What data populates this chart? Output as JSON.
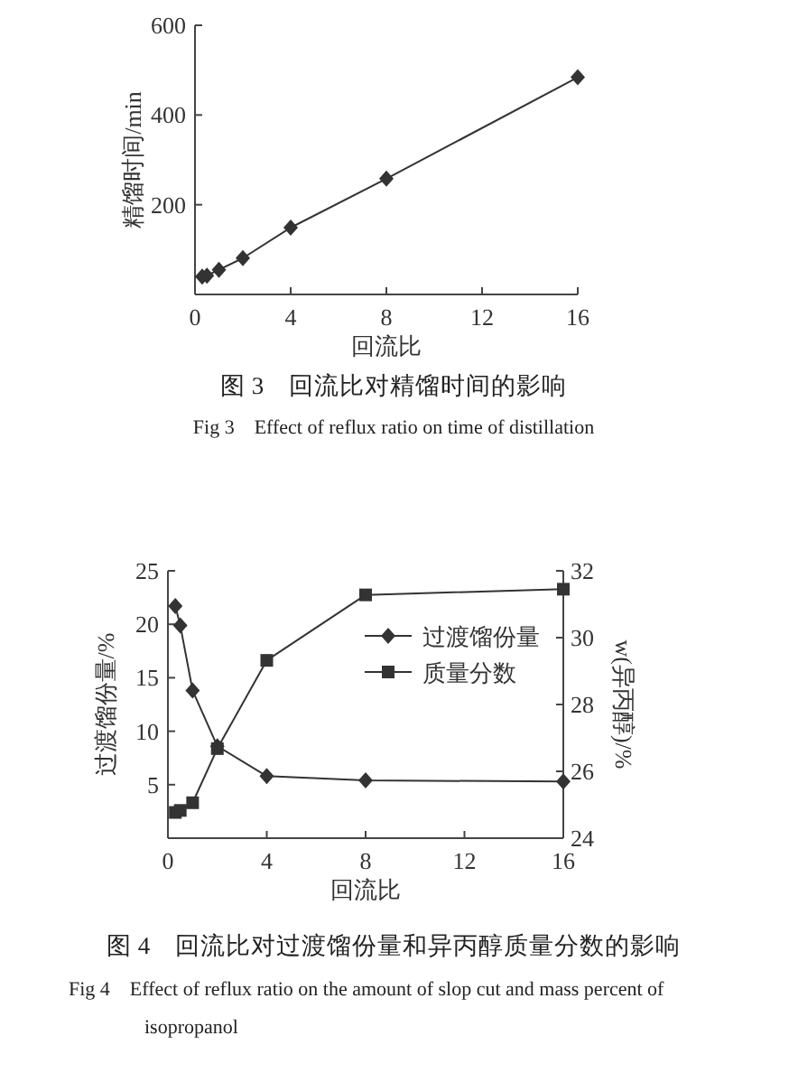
{
  "chart_data": [
    {
      "type": "line",
      "title": "图 3　回流比对精馏时间的影响",
      "subtitle": "Fig 3　Effect of reflux ratio on time of distillation",
      "xlabel": "回流比",
      "ylabel": "精馏时间/min",
      "x": [
        0.3,
        0.5,
        1,
        2,
        4,
        8,
        16
      ],
      "xlim": [
        0,
        16
      ],
      "xticks": [
        0,
        4,
        8,
        12,
        16
      ],
      "ylim": [
        0,
        600
      ],
      "yticks": [
        200,
        400,
        600
      ],
      "grid": false,
      "legend": false,
      "series": [
        {
          "color": "#333333",
          "marker": "diamond",
          "values": [
            40,
            42,
            55,
            81,
            149,
            258,
            484
          ]
        }
      ]
    },
    {
      "type": "line",
      "title": "图 4　回流比对过渡馏份量和异丙醇质量分数的影响",
      "subtitle": "Fig 4　Effect of reflux ratio on the amount of slop cut and mass percent of isopropanol",
      "xlabel": "回流比",
      "ylabel": "过渡馏份量/%",
      "y2label": "w(异丙醇)/%",
      "x": [
        0.3,
        0.5,
        1,
        2,
        4,
        8,
        16
      ],
      "xlim": [
        0,
        16
      ],
      "xticks": [
        0,
        4,
        8,
        12,
        16
      ],
      "ylim": [
        0,
        25
      ],
      "yticks": [
        5,
        10,
        15,
        20,
        25
      ],
      "y2lim": [
        24,
        32
      ],
      "y2ticks": [
        24,
        26,
        28,
        30,
        32
      ],
      "grid": false,
      "legend": "right",
      "series": [
        {
          "name": "过渡馏份量",
          "color": "#333333",
          "marker": "diamond",
          "values": [
            21.7,
            19.9,
            13.8,
            8.6,
            5.8,
            5.4,
            5.3
          ]
        },
        {
          "name": "质量分数",
          "color": "#333333",
          "marker": "square",
          "axis": "y2",
          "values": [
            24.77,
            24.83,
            25.06,
            26.68,
            29.32,
            31.28,
            31.45
          ]
        }
      ]
    }
  ]
}
